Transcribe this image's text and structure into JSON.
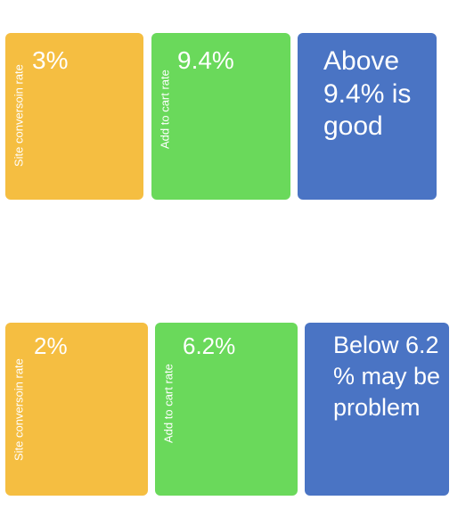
{
  "rows": [
    {
      "site_label": "Site conversoin rate",
      "site_value": "3%",
      "cart_label": "Add to cart rate",
      "cart_value": "9.4%",
      "message": "Above 9.4% is good"
    },
    {
      "site_label": "Site conversoin rate",
      "site_value": "2%",
      "cart_label": "Add to cart rate",
      "cart_value": "6.2%",
      "message": "Below 6.2 % may be problem"
    }
  ],
  "colors": {
    "yellow": "#f5be41",
    "green": "#6ad95b",
    "blue": "#4a74c4",
    "arrow_fill": "#ffffff"
  }
}
